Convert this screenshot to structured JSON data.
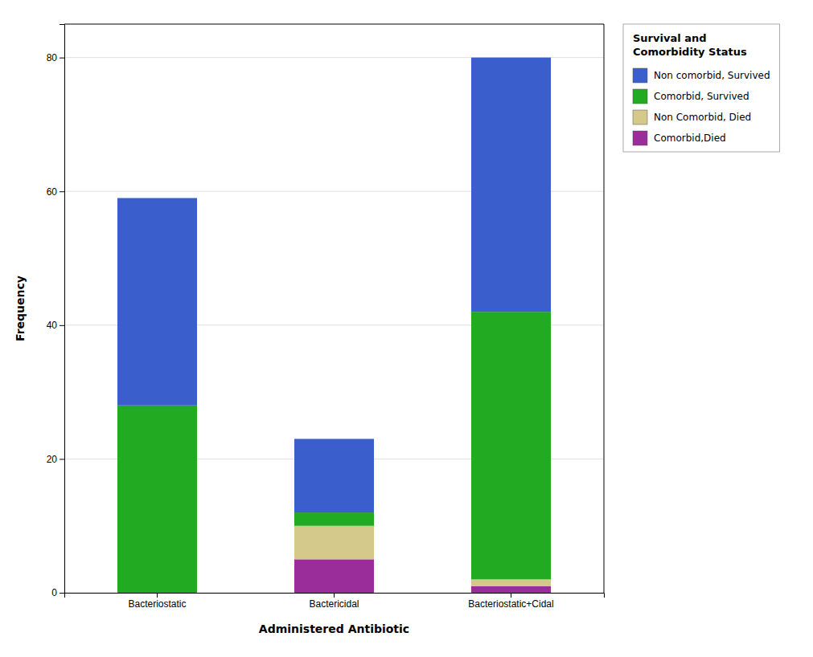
{
  "chart_data": {
    "type": "bar",
    "stacked": true,
    "xlabel": "Administered Antibiotic",
    "ylabel": "Frequency",
    "categories": [
      "Bacteriostatic",
      "Bactericidal",
      "Bacteriostatic+Cidal"
    ],
    "series": [
      {
        "name": "Comorbid,Died",
        "color": "#9b2d9b",
        "values": [
          0,
          5,
          1
        ]
      },
      {
        "name": "Non Comorbid, Died",
        "color": "#d4c98a",
        "values": [
          0,
          5,
          1
        ]
      },
      {
        "name": "Comorbid, Survived",
        "color": "#22aa22",
        "values": [
          28,
          2,
          40
        ]
      },
      {
        "name": "Non comorbid, Survived",
        "color": "#3a5fcd",
        "values": [
          31,
          11,
          38
        ]
      }
    ],
    "legend_title": "Survival and\nComorbidity Status",
    "legend": "right",
    "ylim": [
      0,
      85
    ],
    "yticks": [
      0,
      20,
      40,
      60,
      80
    ],
    "grid": true
  }
}
